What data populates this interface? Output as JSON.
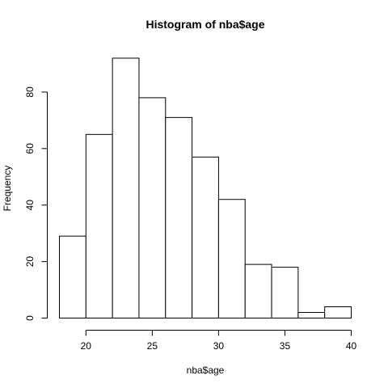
{
  "chart_data": {
    "type": "bar",
    "title": "Histogram of nba$age",
    "xlabel": "nba$age",
    "ylabel": "Frequency",
    "bins": [
      {
        "start": 18,
        "end": 20,
        "count": 29
      },
      {
        "start": 20,
        "end": 22,
        "count": 65
      },
      {
        "start": 22,
        "end": 24,
        "count": 92
      },
      {
        "start": 24,
        "end": 26,
        "count": 78
      },
      {
        "start": 26,
        "end": 28,
        "count": 71
      },
      {
        "start": 28,
        "end": 30,
        "count": 57
      },
      {
        "start": 30,
        "end": 32,
        "count": 42
      },
      {
        "start": 32,
        "end": 34,
        "count": 19
      },
      {
        "start": 34,
        "end": 36,
        "count": 18
      },
      {
        "start": 36,
        "end": 38,
        "count": 2
      },
      {
        "start": 38,
        "end": 40,
        "count": 4
      }
    ],
    "xticks": [
      20,
      25,
      30,
      35,
      40
    ],
    "yticks": [
      0,
      20,
      40,
      60,
      80
    ],
    "xlim": [
      18,
      40
    ],
    "ylim": [
      0,
      92
    ],
    "grid": false,
    "bar_fill": "#ffffff",
    "bar_stroke": "#000000"
  }
}
